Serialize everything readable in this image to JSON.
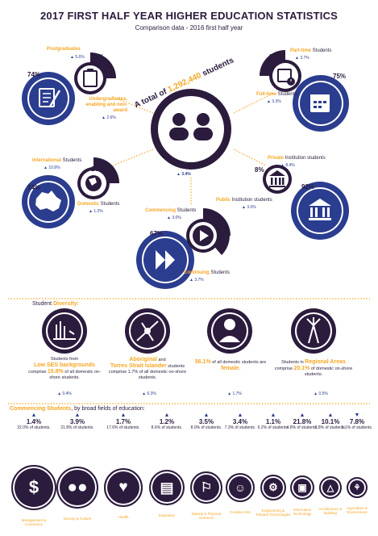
{
  "header": {
    "title": "2017 FIRST HALF YEAR HIGHER EDUCATION STATISTICS",
    "subtitle": "Comparison data - 2016 first half year"
  },
  "centre": {
    "prefix": "A total of ",
    "total": "1,292,440",
    "suffix": " students",
    "change": "▲ 3.4%"
  },
  "postgrad": {
    "label": "Postgraduates",
    "change": "▲ 5.6%",
    "pct": "26%"
  },
  "undergrad": {
    "label": "Undergraduates, enabling and non-award",
    "change": "▲ 2.6%",
    "pct": "74%"
  },
  "parttime": {
    "label": "Part-time",
    "suffix": " Students",
    "change": "▲ 3.7%",
    "pct": "25%"
  },
  "fulltime": {
    "label": "Full-time",
    "suffix": " Students",
    "change": "▲ 3.3%",
    "pct": "75%"
  },
  "international": {
    "label": "International",
    "suffix": " Students",
    "change": "▲ 10.8%",
    "pct": "26%"
  },
  "domestic": {
    "label": "Domestic",
    "suffix": " Students",
    "change": "▲ 1.2%",
    "pct": "74%"
  },
  "private": {
    "label": "Private",
    "suffix": " Institution students",
    "change": "▲ 8.4%",
    "pct": "8%"
  },
  "public": {
    "label": "Public",
    "suffix": " Institution students",
    "change": "▲ 3.0%",
    "pct": "92%"
  },
  "commencing": {
    "label": "Commencing",
    "suffix": " Students",
    "change": "▲ 3.0%",
    "pct": "33%"
  },
  "continuing": {
    "label": "Continuing",
    "suffix": " Students",
    "change": "▲ 3.7%",
    "pct": "67%"
  },
  "diversity": {
    "heading": "Student ",
    "heading_em": "Diversity:",
    "items": [
      {
        "line1": "Students from",
        "em": "Low SES backgrounds",
        "line2": "comprise ",
        "pct": "15.8%",
        "line3": " of all domestic on-shore students.",
        "change": "▲ 0.4%"
      },
      {
        "em": "Aboriginal",
        "line1": " and ",
        "em2": "Torres Strait Islander",
        "line2": " students comprise 1.7% of all domestic on-shore students.",
        "change": "▲ 6.3%"
      },
      {
        "pct": "56.1%",
        "line1": " of all domestic students are ",
        "em": "female",
        "line2": ".",
        "change": "▲ 1.7%"
      },
      {
        "line1": "Students in ",
        "em": "Regional Areas",
        "line2": " comprise ",
        "pct": "20.1%",
        "line3": " of domestic on-shore students.",
        "change": "▲ 0.5%"
      }
    ]
  },
  "fields": {
    "heading_em": "Commencing Students",
    "heading": ", by broad fields of education:",
    "items": [
      {
        "arrow": "▲",
        "pct": "1.4%",
        "sub": "22.0% of students.",
        "name": "Management & Commerce",
        "icon": "money-bag-icon"
      },
      {
        "arrow": "▲",
        "pct": "3.9%",
        "sub": "21.8% of students.",
        "name": "Society & Culture",
        "icon": "people-icon"
      },
      {
        "arrow": "▲",
        "pct": "1.7%",
        "sub": "17.6% of students.",
        "name": "Health",
        "icon": "heartbeat-icon"
      },
      {
        "arrow": "▲",
        "pct": "1.2%",
        "sub": "8.6% of students.",
        "name": "Education",
        "icon": "book-icon"
      },
      {
        "arrow": "▲",
        "pct": "3.5%",
        "sub": "8.0% of students.",
        "name": "Natural & Physical Sciences",
        "icon": "microscope-icon"
      },
      {
        "arrow": "▲",
        "pct": "3.4%",
        "sub": "7.3% of students.",
        "name": "Creative Arts",
        "icon": "masks-icon"
      },
      {
        "arrow": "▲",
        "pct": "1.1%",
        "sub": "6.2% of students.",
        "name": "Engineering & Related Technologies",
        "icon": "gears-icon"
      },
      {
        "arrow": "▲",
        "pct": "21.8%",
        "sub": "4.8% of students.",
        "name": "Information Technology",
        "icon": "computer-icon"
      },
      {
        "arrow": "▲",
        "pct": "10.1%",
        "sub": "2.8% of students.",
        "name": "Architecture & Building",
        "icon": "compass-icon"
      },
      {
        "arrow": "▼",
        "pct": "7.8%",
        "sub": "1.1% of students.",
        "name": "Agriculture & Environment",
        "icon": "plant-icon"
      }
    ]
  }
}
